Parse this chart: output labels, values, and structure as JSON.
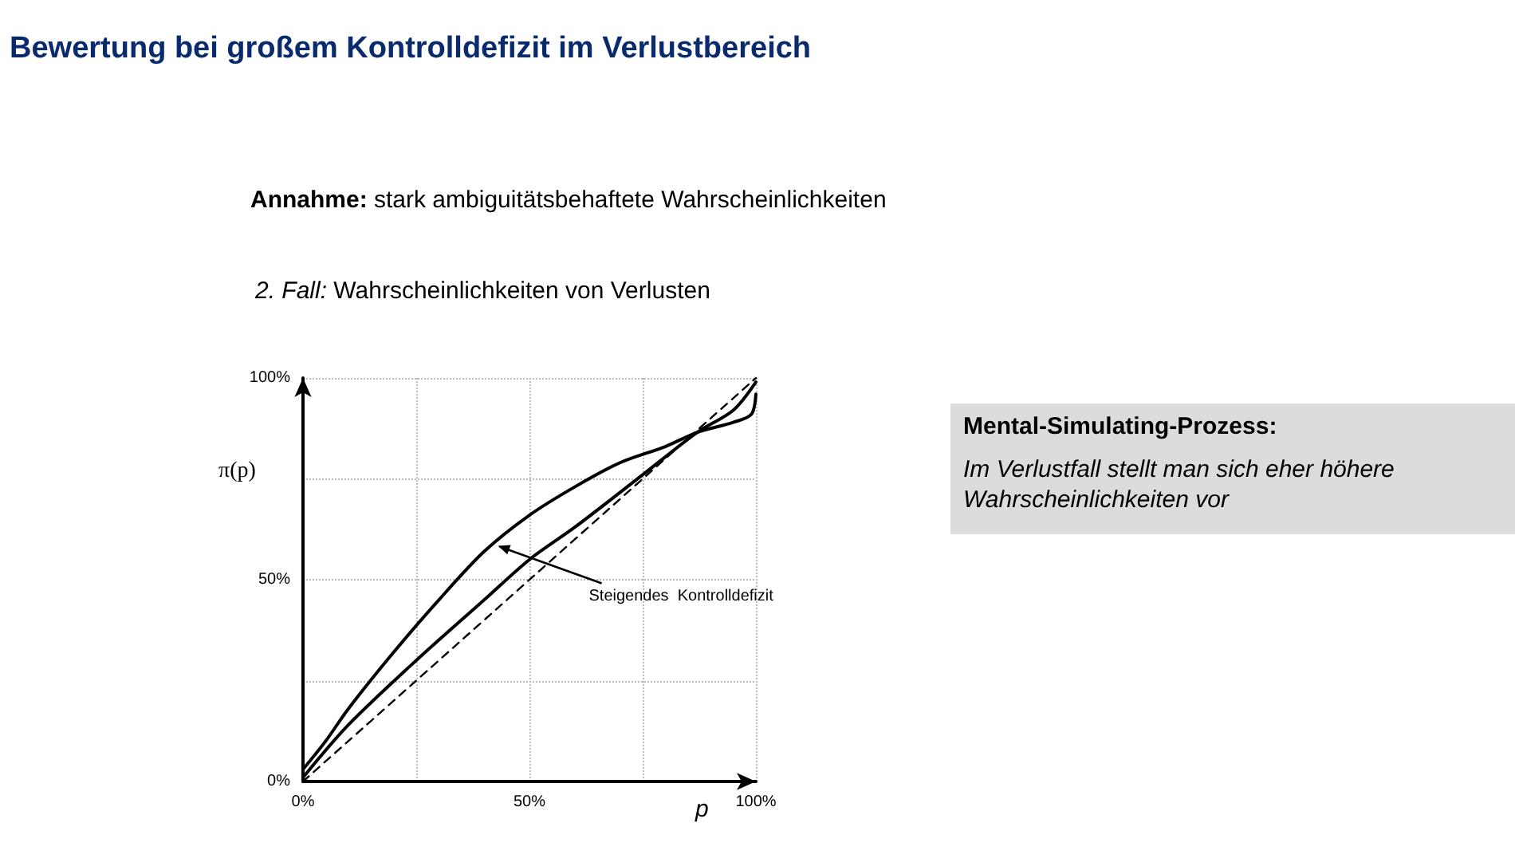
{
  "chart_data": {
    "type": "line",
    "title": "Bewertung bei großem Kontrolldefizit im Verlustbereich",
    "subtitle": "Annahme: stark ambiguitätsbehaftete Wahrscheinlichkeiten",
    "xlabel": "p",
    "ylabel": "π(p)",
    "annotations": [
      "2. Fall: Wahrscheinlichkeiten von Verlusten",
      {
        "text": "Steigendes  Kontrolldefizit",
        "x": 42,
        "y": 59
      },
      "Mental-Simulating-Prozess:",
      "Im Verlustfall stellt man sich eher höhere Wahrscheinlichkeiten vor"
    ],
    "series": [
      {
        "color": "#000000",
        "line_style": "solid",
        "x": [
          0,
          5,
          10,
          20,
          30,
          40,
          50,
          60,
          70,
          80,
          87,
          95,
          99,
          100
        ],
        "values": [
          3,
          10,
          18,
          32,
          45,
          57,
          66,
          73,
          79,
          83,
          86.5,
          89,
          91,
          96
        ]
      },
      {
        "color": "#000000",
        "line_style": "solid",
        "x": [
          0,
          10,
          25,
          40,
          50,
          60,
          75,
          87,
          95,
          100
        ],
        "values": [
          1,
          14,
          30,
          45,
          55,
          63,
          76,
          86.5,
          92,
          99
        ]
      },
      {
        "color": "#000000",
        "line_style": "dashed",
        "x": [
          0,
          100
        ],
        "values": [
          0,
          100
        ]
      }
    ],
    "xlim": [
      0,
      100
    ],
    "ylim": [
      0,
      100
    ],
    "xticks": [
      {
        "value": 0,
        "label": "0%"
      },
      {
        "value": 25,
        "label": null
      },
      {
        "value": 50,
        "label": "50%"
      },
      {
        "value": 75,
        "label": null
      },
      {
        "value": 100,
        "label": "100%"
      }
    ],
    "yticks": [
      {
        "value": 0,
        "label": "0%"
      },
      {
        "value": 25,
        "label": null
      },
      {
        "value": 50,
        "label": "50%"
      },
      {
        "value": 75,
        "label": null
      },
      {
        "value": 100,
        "label": "100%"
      }
    ],
    "grid": true,
    "marker": "none"
  }
}
